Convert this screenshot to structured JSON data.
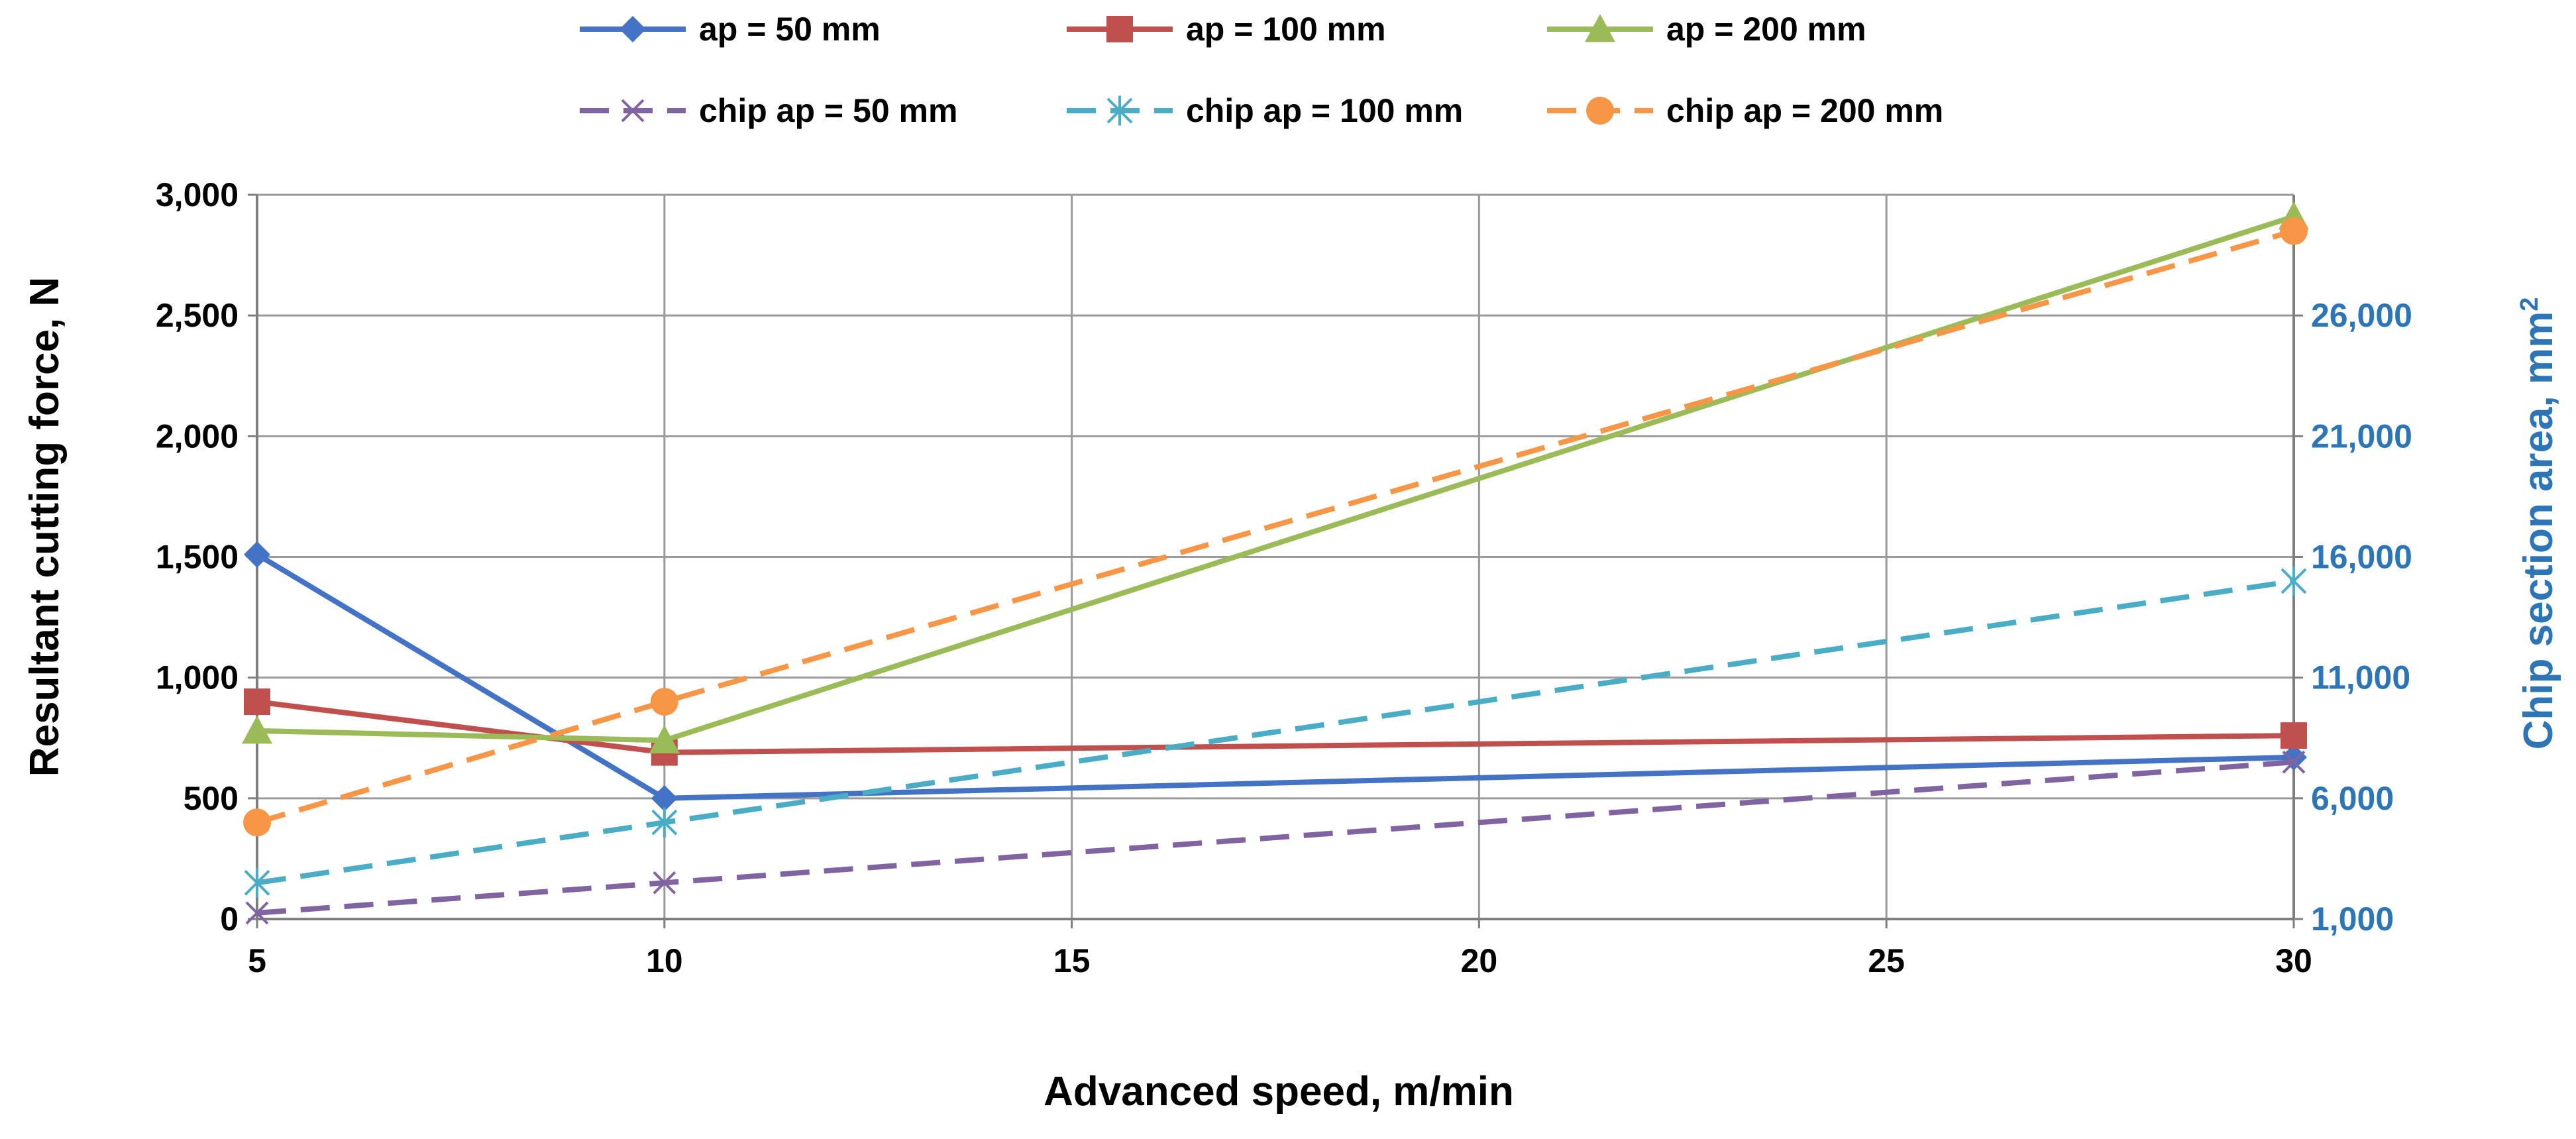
{
  "chart_data": {
    "type": "line",
    "title": "",
    "x": [
      5,
      10,
      30
    ],
    "xlabel": "Advanced speed, m/min",
    "ylabel": "Resultant cutting force, N",
    "y2label": "Chip section area, mm",
    "y2label_sup": "2",
    "xlim": [
      5,
      30
    ],
    "ylim": [
      0,
      3000
    ],
    "y2lim": [
      1000,
      31000
    ],
    "x_ticks": [
      "5",
      "10",
      "15",
      "20",
      "25",
      "30"
    ],
    "y_ticks": [
      "0",
      "500",
      "1,000",
      "1,500",
      "2,000",
      "2,500",
      "3,000"
    ],
    "y2_ticks": [
      "1,000",
      "6,000",
      "11,000",
      "16,000",
      "21,000",
      "26,000"
    ],
    "grid": true,
    "legend_position": "top",
    "series": [
      {
        "name": "ap = 50 mm",
        "axis": "left",
        "values": [
          1510,
          500,
          670
        ],
        "color": "#4472c4",
        "dash": "solid",
        "marker": "diamond"
      },
      {
        "name": "ap = 100 mm",
        "axis": "left",
        "values": [
          900,
          690,
          760
        ],
        "color": "#c0504d",
        "dash": "solid",
        "marker": "square"
      },
      {
        "name": "ap = 200 mm",
        "axis": "left",
        "values": [
          780,
          740,
          2910
        ],
        "color": "#9bbb59",
        "dash": "solid",
        "marker": "triangle"
      },
      {
        "name": "chip ap = 50 mm",
        "axis": "right",
        "values": [
          1250,
          2500,
          7500
        ],
        "color": "#8064a2",
        "dash": "dashed",
        "marker": "x"
      },
      {
        "name": "chip ap = 100 mm",
        "axis": "right",
        "values": [
          2500,
          5000,
          15000
        ],
        "color": "#4bacc6",
        "dash": "dashed",
        "marker": "star"
      },
      {
        "name": "chip ap = 200 mm",
        "axis": "right",
        "values": [
          5000,
          10000,
          29500
        ],
        "color": "#f79646",
        "dash": "dashed",
        "marker": "circle"
      }
    ]
  }
}
